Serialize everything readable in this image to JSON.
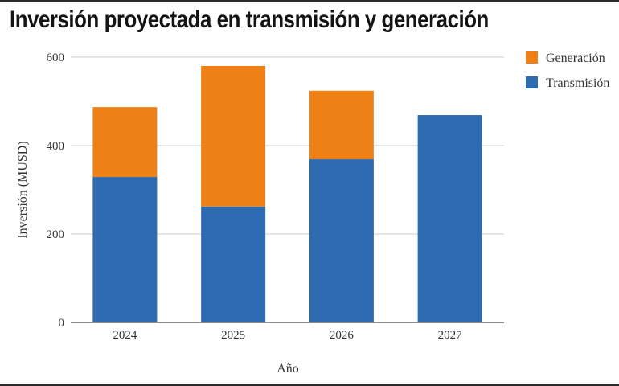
{
  "title": "Inversión proyectada en transmisión y generación",
  "chart_data": {
    "type": "bar",
    "stacked": true,
    "title": "Inversión proyectada en transmisión y generación",
    "xlabel": "Año",
    "ylabel": "Inversión (MUSD)",
    "categories": [
      "2024",
      "2025",
      "2026",
      "2027"
    ],
    "series": [
      {
        "name": "Transmisión",
        "color": "#2e6bb0",
        "values": [
          329,
          262,
          369,
          469
        ]
      },
      {
        "name": "Generación",
        "color": "#ee8016",
        "values": [
          158,
          318,
          155,
          0
        ]
      }
    ],
    "ylim": [
      0,
      600
    ],
    "yticks": [
      "0",
      "200",
      "400",
      "600"
    ],
    "grid": true,
    "legend": {
      "position": "right",
      "entries": [
        "Generación",
        "Transmisión"
      ]
    }
  }
}
